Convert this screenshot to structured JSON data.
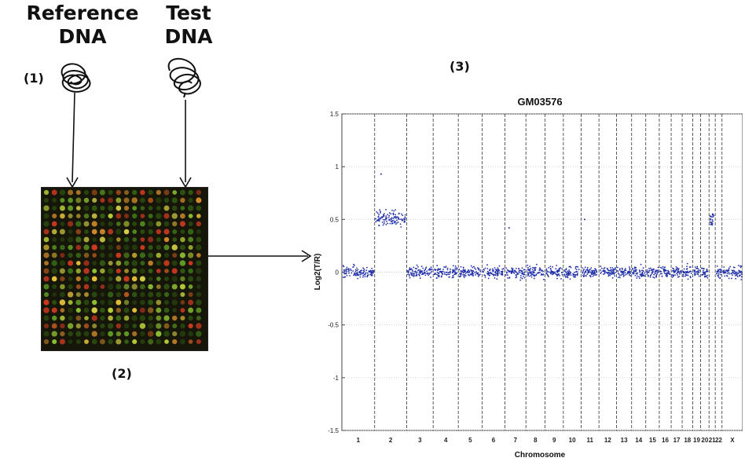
{
  "labels": {
    "reference_dna": "Reference\nDNA",
    "test_dna": "Test\nDNA",
    "step1": "(1)",
    "step2": "(2)",
    "step3": "(3)"
  },
  "microarray": {
    "spot_colors": [
      "#2a4a10",
      "#3a6f18",
      "#5f9a24",
      "#8fc034",
      "#b9cf38",
      "#d9d54a",
      "#e6c23a",
      "#d08a2c",
      "#b6561f",
      "#cf3a22"
    ]
  },
  "chart_data": {
    "type": "scatter",
    "title": "GM03576",
    "xlabel": "Chromosome",
    "ylabel": "Log2(T/R)",
    "ylim": [
      -1.5,
      1.5
    ],
    "yticks": [
      -1.5,
      -1,
      -0.5,
      0,
      0.5,
      1,
      1.5
    ],
    "point_color": "#1f2fa8",
    "chromosomes": [
      {
        "label": "1",
        "start": 0,
        "end": 248,
        "mean": 0.0,
        "note": "normal"
      },
      {
        "label": "2",
        "start": 248,
        "end": 490,
        "mean": 0.5,
        "note": "gain"
      },
      {
        "label": "3",
        "start": 490,
        "end": 690,
        "mean": 0.0
      },
      {
        "label": "4",
        "start": 690,
        "end": 880,
        "mean": 0.0
      },
      {
        "label": "5",
        "start": 880,
        "end": 1061,
        "mean": 0.0
      },
      {
        "label": "6",
        "start": 1061,
        "end": 1232,
        "mean": 0.0
      },
      {
        "label": "7",
        "start": 1232,
        "end": 1391,
        "mean": 0.0
      },
      {
        "label": "8",
        "start": 1391,
        "end": 1536,
        "mean": 0.0
      },
      {
        "label": "9",
        "start": 1536,
        "end": 1674,
        "mean": 0.0
      },
      {
        "label": "10",
        "start": 1674,
        "end": 1808,
        "mean": 0.0
      },
      {
        "label": "11",
        "start": 1808,
        "end": 1943,
        "mean": 0.0
      },
      {
        "label": "12",
        "start": 1943,
        "end": 2076,
        "mean": 0.0
      },
      {
        "label": "13",
        "start": 2076,
        "end": 2190,
        "mean": 0.0
      },
      {
        "label": "14",
        "start": 2190,
        "end": 2297,
        "mean": 0.0
      },
      {
        "label": "15",
        "start": 2297,
        "end": 2399,
        "mean": 0.0
      },
      {
        "label": "16",
        "start": 2399,
        "end": 2489,
        "mean": 0.0
      },
      {
        "label": "17",
        "start": 2489,
        "end": 2572,
        "mean": 0.0
      },
      {
        "label": "18",
        "start": 2572,
        "end": 2652,
        "mean": 0.0
      },
      {
        "label": "19",
        "start": 2652,
        "end": 2711,
        "mean": 0.0
      },
      {
        "label": "20",
        "start": 2711,
        "end": 2775,
        "mean": 0.0
      },
      {
        "label": "21",
        "start": 2775,
        "end": 2822,
        "mean": 0.5,
        "note": "gain"
      },
      {
        "label": "22",
        "start": 2822,
        "end": 2873,
        "mean": 0.0
      },
      {
        "label": "X",
        "start": 2873,
        "end": 3029,
        "mean": 0.0
      }
    ],
    "outliers": [
      {
        "chrom": "2",
        "y": 0.93
      },
      {
        "chrom": "7",
        "y": 0.42
      },
      {
        "chrom": "11",
        "y": 0.5
      }
    ]
  }
}
